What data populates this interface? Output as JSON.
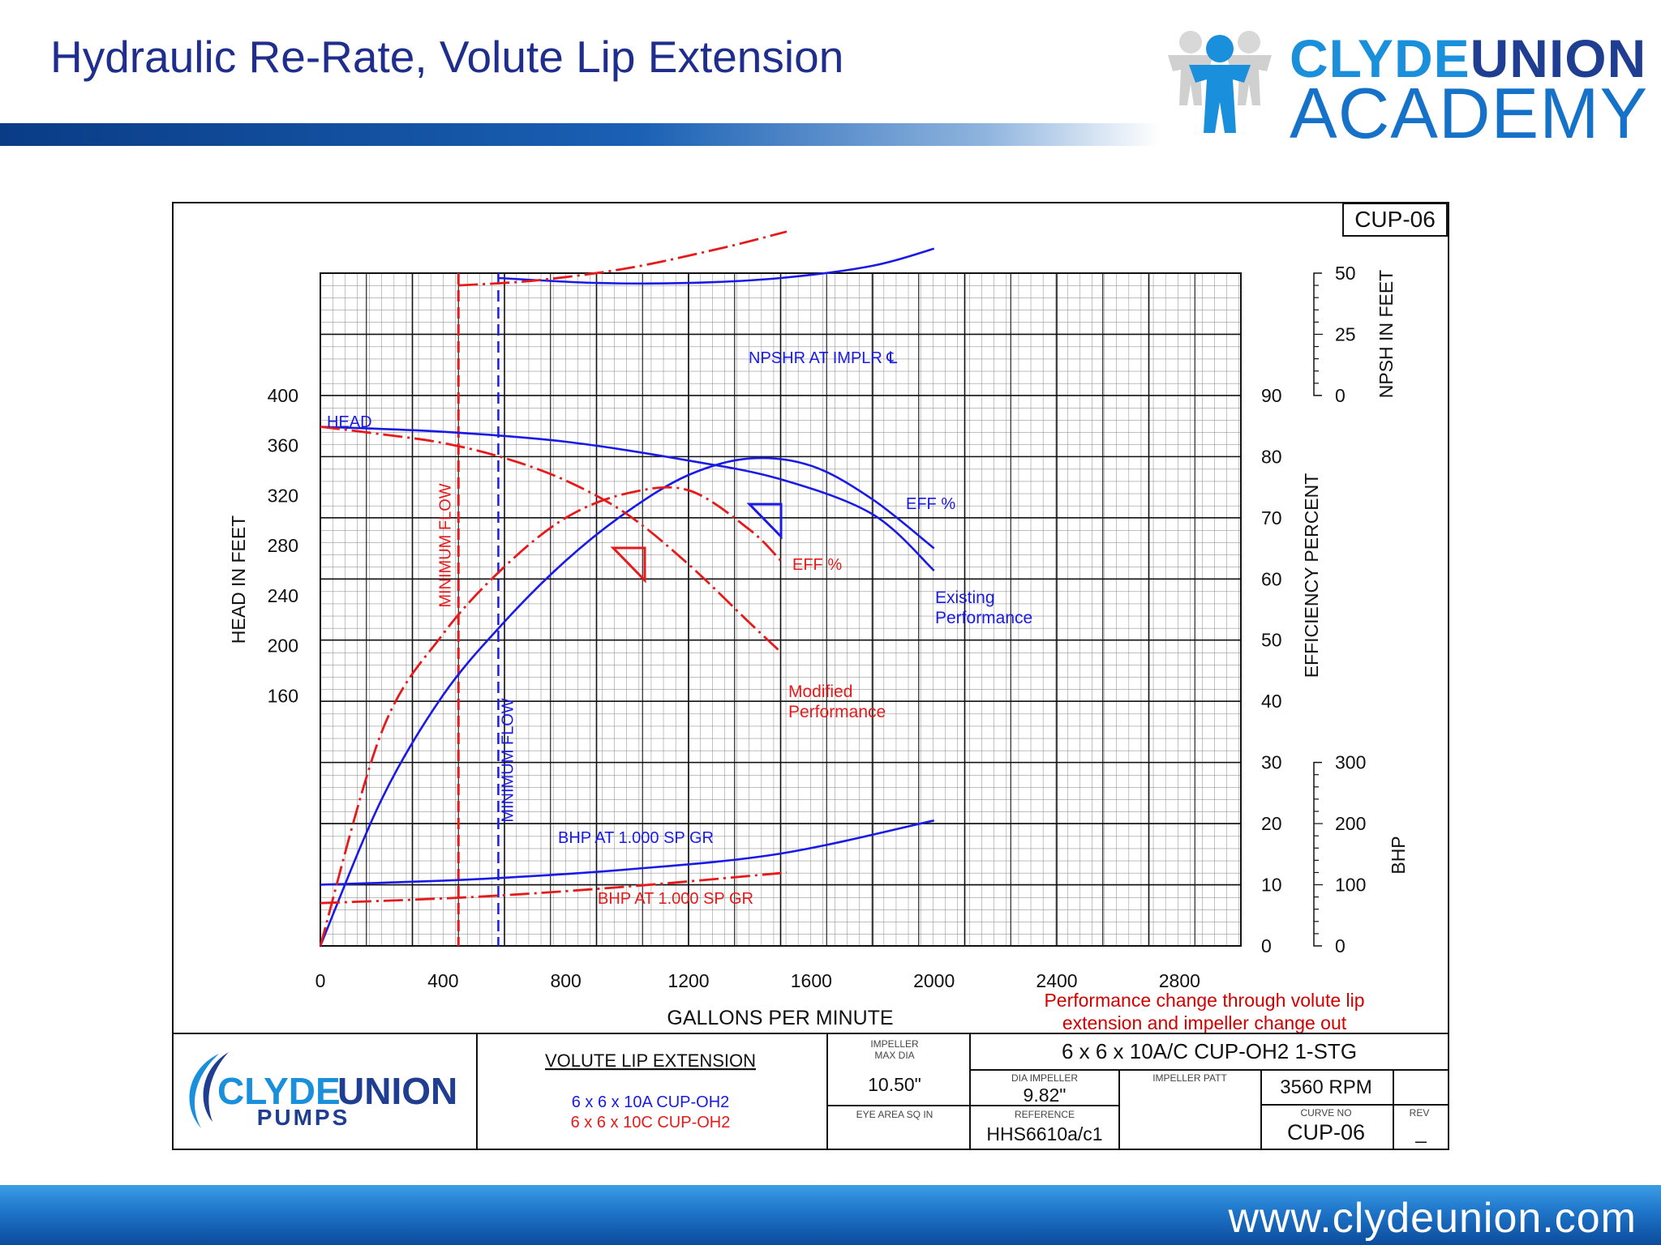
{
  "slide": {
    "title": "Hydraulic Re-Rate, Volute Lip Extension",
    "website": "www.clydeunion.com"
  },
  "logo_top": {
    "part1": "CLYDE",
    "part2": "UNION",
    "line2": "ACADEMY"
  },
  "colors": {
    "existing": "#1a1ae6",
    "modified": "#e61a1a",
    "title": "#1f2e8c",
    "band": "#0a3c86"
  },
  "chart_data": {
    "type": "line",
    "badge": "CUP-06",
    "xlabel": "GALLONS PER MINUTE",
    "xlim": [
      0,
      3000
    ],
    "xticks": [
      0,
      400,
      800,
      1200,
      1600,
      2000,
      2400,
      2800
    ],
    "axes": {
      "head": {
        "label": "HEAD IN FEET",
        "ticks": [
          160,
          200,
          240,
          280,
          320,
          360,
          400
        ],
        "range": [
          -40,
          400
        ]
      },
      "efficiency": {
        "label": "EFFICIENCY PERCENT",
        "ticks": [
          0,
          10,
          20,
          30,
          40,
          50,
          60,
          70,
          80,
          90
        ],
        "range": [
          0,
          90
        ]
      },
      "npsh": {
        "label": "NPSH IN FEET",
        "ticks": [
          0,
          25,
          50
        ],
        "range": [
          0,
          50
        ]
      },
      "bhp": {
        "label": "BHP",
        "ticks": [
          0,
          100,
          200,
          300
        ],
        "range": [
          0,
          300
        ]
      }
    },
    "min_flow": {
      "existing": 580,
      "modified": 450,
      "label": "MINIMUM FLOW"
    },
    "series": [
      {
        "name": "HEAD",
        "group": "existing",
        "axis": "head",
        "x": [
          0,
          400,
          800,
          1200,
          1500,
          1800,
          2000
        ],
        "y": [
          375,
          371,
          363,
          348,
          333,
          305,
          260
        ]
      },
      {
        "name": "EFF %",
        "group": "existing",
        "axis": "efficiency",
        "x": [
          0,
          200,
          400,
          600,
          800,
          1000,
          1200,
          1400,
          1600,
          1800,
          2000
        ],
        "y": [
          0,
          24,
          41,
          53,
          63,
          71,
          77,
          79.7,
          78.5,
          73,
          65
        ]
      },
      {
        "name": "NPSHR AT IMPLR ℄",
        "group": "existing",
        "axis": "npsh",
        "x": [
          580,
          900,
          1200,
          1500,
          1800,
          2000
        ],
        "y": [
          48,
          46,
          46,
          48,
          53,
          60
        ]
      },
      {
        "name": "BHP AT 1.000 SP GR",
        "group": "existing",
        "axis": "bhp",
        "x": [
          0,
          500,
          1000,
          1500,
          2000
        ],
        "y": [
          100,
          109,
          125,
          151,
          205
        ]
      },
      {
        "name": "HEAD",
        "group": "modified",
        "axis": "head",
        "x": [
          0,
          200,
          400,
          600,
          800,
          1000,
          1200,
          1400,
          1500
        ],
        "y": [
          375,
          369,
          362,
          350,
          332,
          305,
          265,
          218,
          195
        ]
      },
      {
        "name": "EFF %",
        "group": "modified",
        "axis": "efficiency",
        "x": [
          0,
          200,
          400,
          600,
          800,
          1000,
          1200,
          1400,
          1500
        ],
        "y": [
          0,
          35,
          51,
          62,
          70,
          74,
          74.5,
          68,
          63
        ]
      },
      {
        "name": "NPSHR",
        "group": "modified",
        "axis": "npsh",
        "x": [
          450,
          700,
          1000,
          1300,
          1520
        ],
        "y": [
          45,
          47,
          52,
          60,
          67
        ]
      },
      {
        "name": "BHP AT 1.000 SP GR",
        "group": "modified",
        "axis": "bhp",
        "x": [
          0,
          500,
          1000,
          1520
        ],
        "y": [
          70,
          80,
          97,
          120
        ]
      }
    ],
    "annotations": {
      "head": "HEAD",
      "eff_existing": "EFF %",
      "eff_modified": "EFF %",
      "npshr": "NPSHR AT IMPLR ℄",
      "bhp_existing": "BHP AT 1.000 SP GR",
      "bhp_modified": "BHP AT 1.000 SP GR",
      "existing_perf_1": "Existing",
      "existing_perf_2": "Performance",
      "modified_perf_1": "Modified",
      "modified_perf_2": "Performance",
      "note_1": "Performance change through volute lip",
      "note_2": "extension and impeller change out"
    }
  },
  "title_block": {
    "logo": {
      "part1": "CLYDE",
      "part2": "UNION",
      "sub": "PUMPS"
    },
    "heading": "VOLUTE LIP EXTENSION",
    "model_existing": "6 x 6 x 10A CUP-OH2",
    "model_modified": "6 x 6 x 10C CUP-OH2",
    "impeller_max_dia_label_1": "IMPELLER",
    "impeller_max_dia_label_2": "MAX DIA",
    "impeller_max_dia": "10.50\"",
    "eye_area_label": "EYE AREA SQ IN",
    "pump_model": "6 x 6 x 10A/C CUP-OH2  1-STG",
    "dia_impeller_label": "DIA IMPELLER",
    "dia_impeller": "9.82\"",
    "impeller_patt_label": "IMPELLER PATT",
    "speed": "3560 RPM",
    "reference_label": "REFERENCE",
    "reference": "HHS6610a/c1",
    "curve_no_label": "CURVE NO",
    "curve_no": "CUP-06",
    "rev_label": "REV",
    "rev": "_"
  }
}
